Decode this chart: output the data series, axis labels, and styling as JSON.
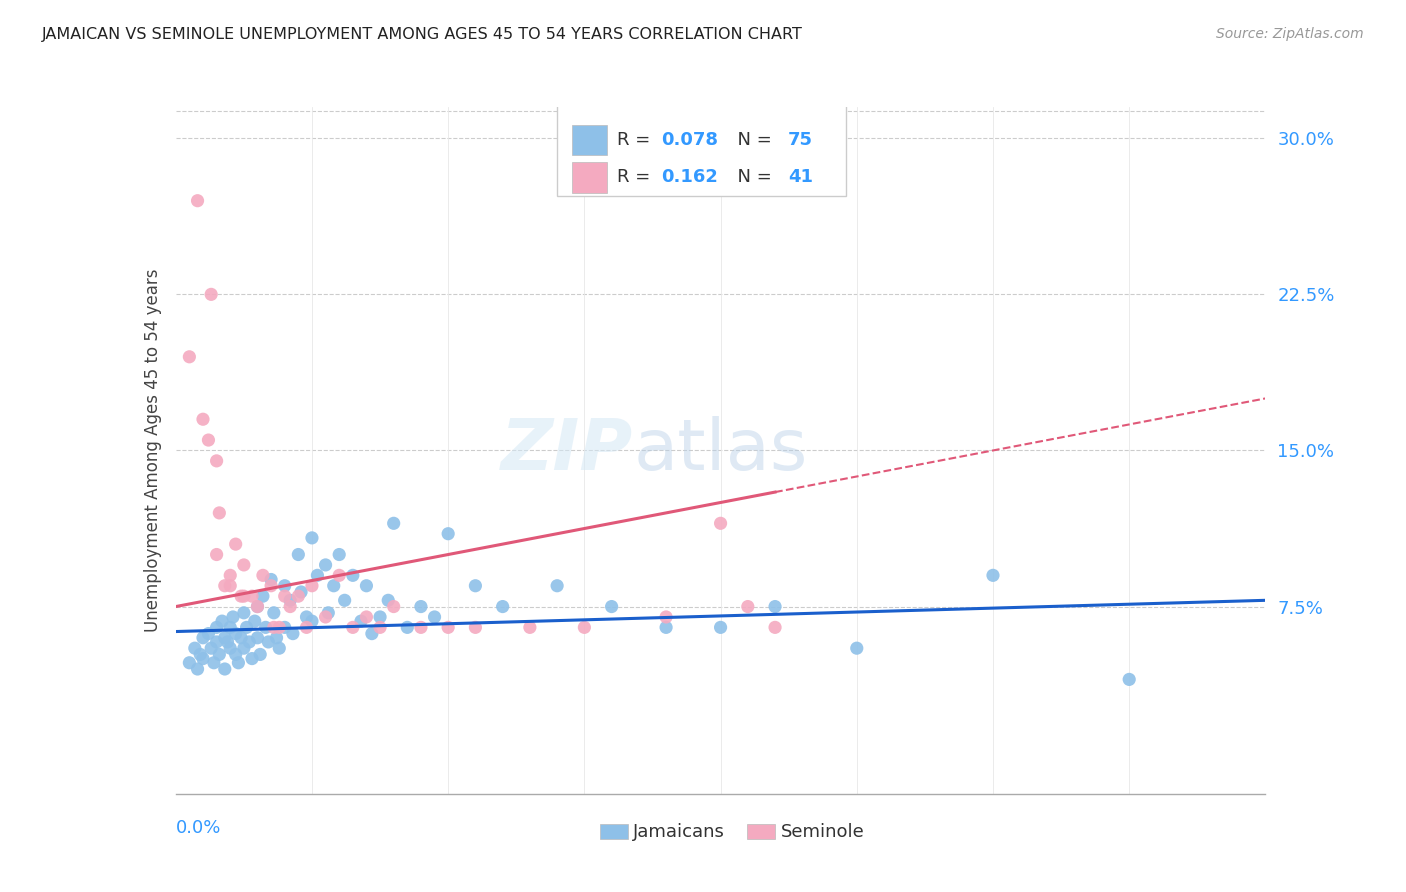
{
  "title": "JAMAICAN VS SEMINOLE UNEMPLOYMENT AMONG AGES 45 TO 54 YEARS CORRELATION CHART",
  "source": "Source: ZipAtlas.com",
  "ylabel": "Unemployment Among Ages 45 to 54 years",
  "xmin": 0.0,
  "xmax": 0.4,
  "ymin": -0.015,
  "ymax": 0.315,
  "jamaicans_color": "#8ec0e8",
  "seminole_color": "#f4aac0",
  "jamaicans_R": 0.078,
  "jamaicans_N": 75,
  "seminole_R": 0.162,
  "seminole_N": 41,
  "watermark_zip": "ZIP",
  "watermark_atlas": "atlas",
  "jamaicans_x": [
    0.005,
    0.007,
    0.008,
    0.009,
    0.01,
    0.01,
    0.012,
    0.013,
    0.014,
    0.015,
    0.015,
    0.016,
    0.017,
    0.018,
    0.018,
    0.019,
    0.02,
    0.02,
    0.021,
    0.022,
    0.022,
    0.023,
    0.024,
    0.025,
    0.025,
    0.026,
    0.027,
    0.028,
    0.029,
    0.03,
    0.03,
    0.031,
    0.032,
    0.033,
    0.034,
    0.035,
    0.036,
    0.037,
    0.038,
    0.04,
    0.04,
    0.042,
    0.043,
    0.045,
    0.046,
    0.048,
    0.05,
    0.05,
    0.052,
    0.055,
    0.056,
    0.058,
    0.06,
    0.062,
    0.065,
    0.068,
    0.07,
    0.072,
    0.075,
    0.078,
    0.08,
    0.085,
    0.09,
    0.095,
    0.1,
    0.11,
    0.12,
    0.14,
    0.16,
    0.18,
    0.2,
    0.22,
    0.25,
    0.3,
    0.35
  ],
  "jamaicans_y": [
    0.048,
    0.055,
    0.045,
    0.052,
    0.06,
    0.05,
    0.062,
    0.055,
    0.048,
    0.065,
    0.058,
    0.052,
    0.068,
    0.06,
    0.045,
    0.058,
    0.065,
    0.055,
    0.07,
    0.062,
    0.052,
    0.048,
    0.06,
    0.072,
    0.055,
    0.065,
    0.058,
    0.05,
    0.068,
    0.075,
    0.06,
    0.052,
    0.08,
    0.065,
    0.058,
    0.088,
    0.072,
    0.06,
    0.055,
    0.085,
    0.065,
    0.078,
    0.062,
    0.1,
    0.082,
    0.07,
    0.108,
    0.068,
    0.09,
    0.095,
    0.072,
    0.085,
    0.1,
    0.078,
    0.09,
    0.068,
    0.085,
    0.062,
    0.07,
    0.078,
    0.115,
    0.065,
    0.075,
    0.07,
    0.11,
    0.085,
    0.075,
    0.085,
    0.075,
    0.065,
    0.065,
    0.075,
    0.055,
    0.09,
    0.04
  ],
  "seminole_x": [
    0.005,
    0.008,
    0.01,
    0.012,
    0.013,
    0.015,
    0.015,
    0.016,
    0.018,
    0.02,
    0.02,
    0.022,
    0.024,
    0.025,
    0.025,
    0.028,
    0.03,
    0.032,
    0.035,
    0.036,
    0.038,
    0.04,
    0.042,
    0.045,
    0.048,
    0.05,
    0.055,
    0.06,
    0.065,
    0.07,
    0.075,
    0.08,
    0.09,
    0.1,
    0.11,
    0.13,
    0.15,
    0.18,
    0.2,
    0.21,
    0.22
  ],
  "seminole_y": [
    0.195,
    0.27,
    0.165,
    0.155,
    0.225,
    0.145,
    0.1,
    0.12,
    0.085,
    0.09,
    0.085,
    0.105,
    0.08,
    0.08,
    0.095,
    0.08,
    0.075,
    0.09,
    0.085,
    0.065,
    0.065,
    0.08,
    0.075,
    0.08,
    0.065,
    0.085,
    0.07,
    0.09,
    0.065,
    0.07,
    0.065,
    0.075,
    0.065,
    0.065,
    0.065,
    0.065,
    0.065,
    0.07,
    0.115,
    0.075,
    0.065
  ],
  "seminole_line_xmax": 0.22,
  "right_ytick_vals": [
    0.075,
    0.15,
    0.225,
    0.3
  ],
  "right_yticklabels": [
    "7.5%",
    "15.0%",
    "22.5%",
    "30.0%"
  ]
}
